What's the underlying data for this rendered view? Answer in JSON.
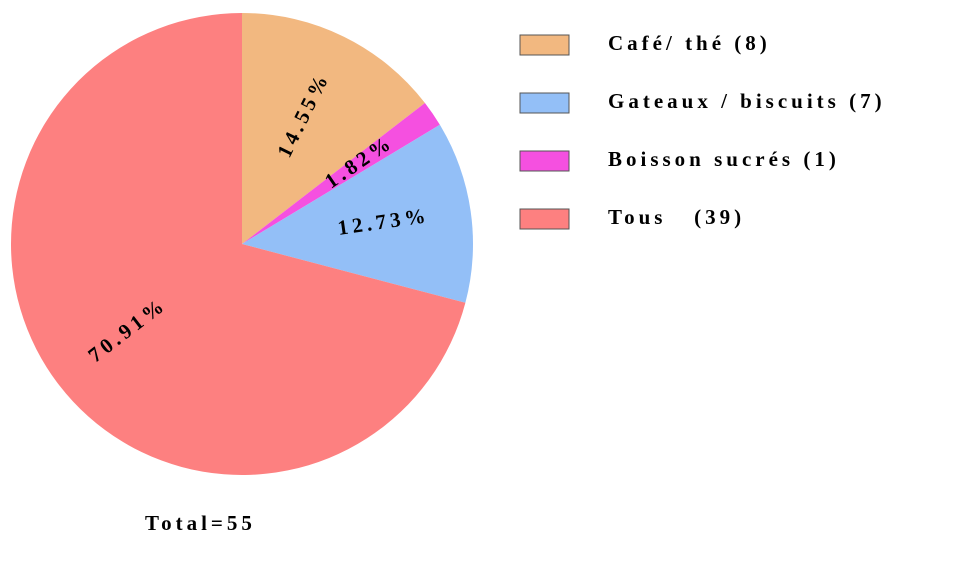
{
  "chart_data": {
    "type": "pie",
    "values": [
      14.55,
      1.82,
      12.73,
      70.91
    ],
    "value_labels": [
      "14.55%",
      "1.82%",
      "12.73%",
      "70.91%"
    ],
    "colors": [
      "#f2b880",
      "#f550e0",
      "#93bff7",
      "#fd8080"
    ],
    "legend": [
      {
        "label": "Café/ thé (8)",
        "color": "#f2b880"
      },
      {
        "label": "Gateaux / biscuits (7)",
        "color": "#93bff7"
      },
      {
        "label": "Boisson sucrés (1)",
        "color": "#f550e0"
      },
      {
        "label": "Tous   (39)",
        "color": "#fd8080"
      }
    ],
    "note": "Total=55"
  }
}
